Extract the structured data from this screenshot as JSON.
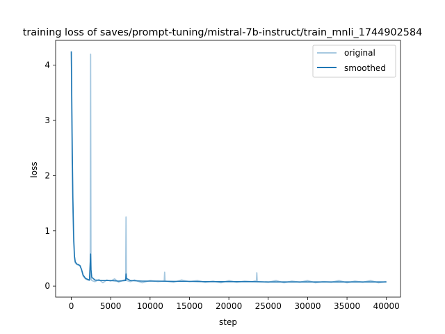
{
  "chart_data": {
    "type": "line",
    "title": "training loss of saves/prompt-tuning/mistral-7b-instruct/train_mnli_1744902584",
    "xlabel": "step",
    "ylabel": "loss",
    "xlim": [
      -1990,
      41790
    ],
    "ylim": [
      -0.2,
      4.45
    ],
    "xticks": [
      0,
      5000,
      10000,
      15000,
      20000,
      25000,
      30000,
      35000,
      40000
    ],
    "yticks": [
      0,
      1,
      2,
      3,
      4
    ],
    "legend_position": "top-right",
    "series": [
      {
        "name": "original",
        "color": "#a6c8e0",
        "points": [
          [
            0,
            4.25
          ],
          [
            50,
            3.2
          ],
          [
            100,
            2.3
          ],
          [
            200,
            1.4
          ],
          [
            300,
            0.8
          ],
          [
            400,
            0.52
          ],
          [
            500,
            0.42
          ],
          [
            700,
            0.39
          ],
          [
            900,
            0.38
          ],
          [
            1100,
            0.37
          ],
          [
            1300,
            0.3
          ],
          [
            1500,
            0.18
          ],
          [
            1800,
            0.13
          ],
          [
            2100,
            0.11
          ],
          [
            2300,
            0.1
          ],
          [
            2400,
            0.12
          ],
          [
            2450,
            4.2
          ],
          [
            2500,
            0.15
          ],
          [
            2600,
            0.1
          ],
          [
            3000,
            0.08
          ],
          [
            3500,
            0.12
          ],
          [
            4000,
            0.06
          ],
          [
            4500,
            0.11
          ],
          [
            5000,
            0.09
          ],
          [
            5500,
            0.13
          ],
          [
            6000,
            0.07
          ],
          [
            6500,
            0.1
          ],
          [
            6900,
            0.12
          ],
          [
            6950,
            1.25
          ],
          [
            7000,
            0.1
          ],
          [
            7500,
            0.08
          ],
          [
            8000,
            0.11
          ],
          [
            9000,
            0.06
          ],
          [
            10000,
            0.1
          ],
          [
            11000,
            0.08
          ],
          [
            11800,
            0.09
          ],
          [
            11850,
            0.25
          ],
          [
            11900,
            0.09
          ],
          [
            13000,
            0.07
          ],
          [
            14000,
            0.11
          ],
          [
            15000,
            0.08
          ],
          [
            16000,
            0.1
          ],
          [
            17000,
            0.07
          ],
          [
            18000,
            0.09
          ],
          [
            19000,
            0.06
          ],
          [
            20000,
            0.1
          ],
          [
            21000,
            0.07
          ],
          [
            22000,
            0.09
          ],
          [
            23000,
            0.08
          ],
          [
            23500,
            0.1
          ],
          [
            23550,
            0.24
          ],
          [
            23600,
            0.08
          ],
          [
            25000,
            0.07
          ],
          [
            26000,
            0.1
          ],
          [
            27000,
            0.06
          ],
          [
            28000,
            0.09
          ],
          [
            29000,
            0.07
          ],
          [
            30000,
            0.1
          ],
          [
            31000,
            0.06
          ],
          [
            32000,
            0.08
          ],
          [
            33000,
            0.07
          ],
          [
            34000,
            0.1
          ],
          [
            35000,
            0.06
          ],
          [
            36000,
            0.09
          ],
          [
            37000,
            0.07
          ],
          [
            38000,
            0.1
          ],
          [
            39000,
            0.06
          ],
          [
            40000,
            0.08
          ]
        ]
      },
      {
        "name": "smoothed",
        "color": "#1f77b4",
        "points": [
          [
            0,
            4.25
          ],
          [
            50,
            3.6
          ],
          [
            100,
            2.8
          ],
          [
            200,
            1.6
          ],
          [
            300,
            0.9
          ],
          [
            400,
            0.55
          ],
          [
            500,
            0.44
          ],
          [
            700,
            0.4
          ],
          [
            900,
            0.39
          ],
          [
            1100,
            0.37
          ],
          [
            1300,
            0.3
          ],
          [
            1500,
            0.2
          ],
          [
            1800,
            0.14
          ],
          [
            2100,
            0.12
          ],
          [
            2300,
            0.11
          ],
          [
            2450,
            0.58
          ],
          [
            2500,
            0.3
          ],
          [
            2600,
            0.16
          ],
          [
            3000,
            0.11
          ],
          [
            4000,
            0.1
          ],
          [
            5000,
            0.1
          ],
          [
            6000,
            0.09
          ],
          [
            6900,
            0.1
          ],
          [
            6950,
            0.22
          ],
          [
            7000,
            0.14
          ],
          [
            7500,
            0.1
          ],
          [
            9000,
            0.09
          ],
          [
            11000,
            0.09
          ],
          [
            13000,
            0.085
          ],
          [
            15000,
            0.085
          ],
          [
            17000,
            0.08
          ],
          [
            19000,
            0.08
          ],
          [
            21000,
            0.08
          ],
          [
            23000,
            0.08
          ],
          [
            25000,
            0.075
          ],
          [
            27000,
            0.075
          ],
          [
            29000,
            0.075
          ],
          [
            31000,
            0.075
          ],
          [
            33000,
            0.075
          ],
          [
            35000,
            0.075
          ],
          [
            37000,
            0.075
          ],
          [
            39000,
            0.075
          ],
          [
            40000,
            0.075
          ]
        ]
      }
    ]
  }
}
